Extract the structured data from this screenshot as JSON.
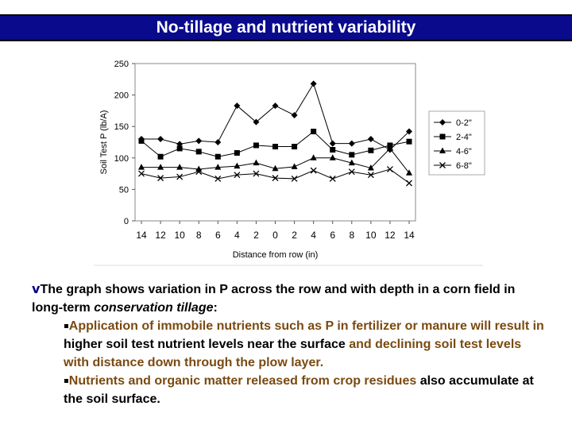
{
  "slide": {
    "title": "No-tillage and nutrient variability",
    "paragraph": {
      "bullet": "v",
      "lead": "The graph shows variation in P across the row and with depth in a corn field in long-term ",
      "italic": "conservation tillage",
      "tail": ":"
    },
    "sub_bullets": [
      {
        "marker": "▪",
        "parts": [
          {
            "text": "Application of immobile nutrients such as P in fertilizer or manure will result in ",
            "tone": "brown"
          },
          {
            "text": "higher soil test nutrient levels near the surface ",
            "tone": "dark"
          },
          {
            "text": "and declining soil test levels with distance down through the plow layer.",
            "tone": "brown"
          }
        ]
      },
      {
        "marker": "▪",
        "parts": [
          {
            "text": "Nutrients and organic matter released from crop residues ",
            "tone": "brown"
          },
          {
            "text": "also accumulate at the soil surface.",
            "tone": "dark"
          }
        ]
      }
    ]
  },
  "chart_data": {
    "type": "line",
    "title": "",
    "xlabel": "Distance from row (in)",
    "ylabel": "Soil Test P (lb/A)",
    "categories": [
      "14",
      "12",
      "10",
      "8",
      "6",
      "4",
      "2",
      "0",
      "2",
      "4",
      "6",
      "8",
      "10",
      "12",
      "14"
    ],
    "ylim": [
      0,
      250
    ],
    "yticks": [
      0,
      50,
      100,
      150,
      200,
      250
    ],
    "grid": false,
    "legend_position": "right",
    "series": [
      {
        "name": "0-2\"",
        "marker": "diamond",
        "values": [
          130,
          130,
          122,
          127,
          125,
          183,
          157,
          183,
          168,
          218,
          123,
          123,
          130,
          113,
          142
        ]
      },
      {
        "name": "2-4\"",
        "marker": "square",
        "values": [
          127,
          102,
          115,
          110,
          102,
          108,
          120,
          118,
          118,
          142,
          113,
          105,
          112,
          120,
          126
        ]
      },
      {
        "name": "4-6\"",
        "marker": "triangle",
        "values": [
          85,
          85,
          85,
          82,
          85,
          87,
          92,
          83,
          86,
          100,
          100,
          92,
          84,
          115,
          76
        ]
      },
      {
        "name": "6-8\"",
        "marker": "x",
        "values": [
          75,
          68,
          70,
          78,
          67,
          73,
          75,
          68,
          67,
          80,
          67,
          78,
          73,
          82,
          60
        ]
      }
    ]
  }
}
